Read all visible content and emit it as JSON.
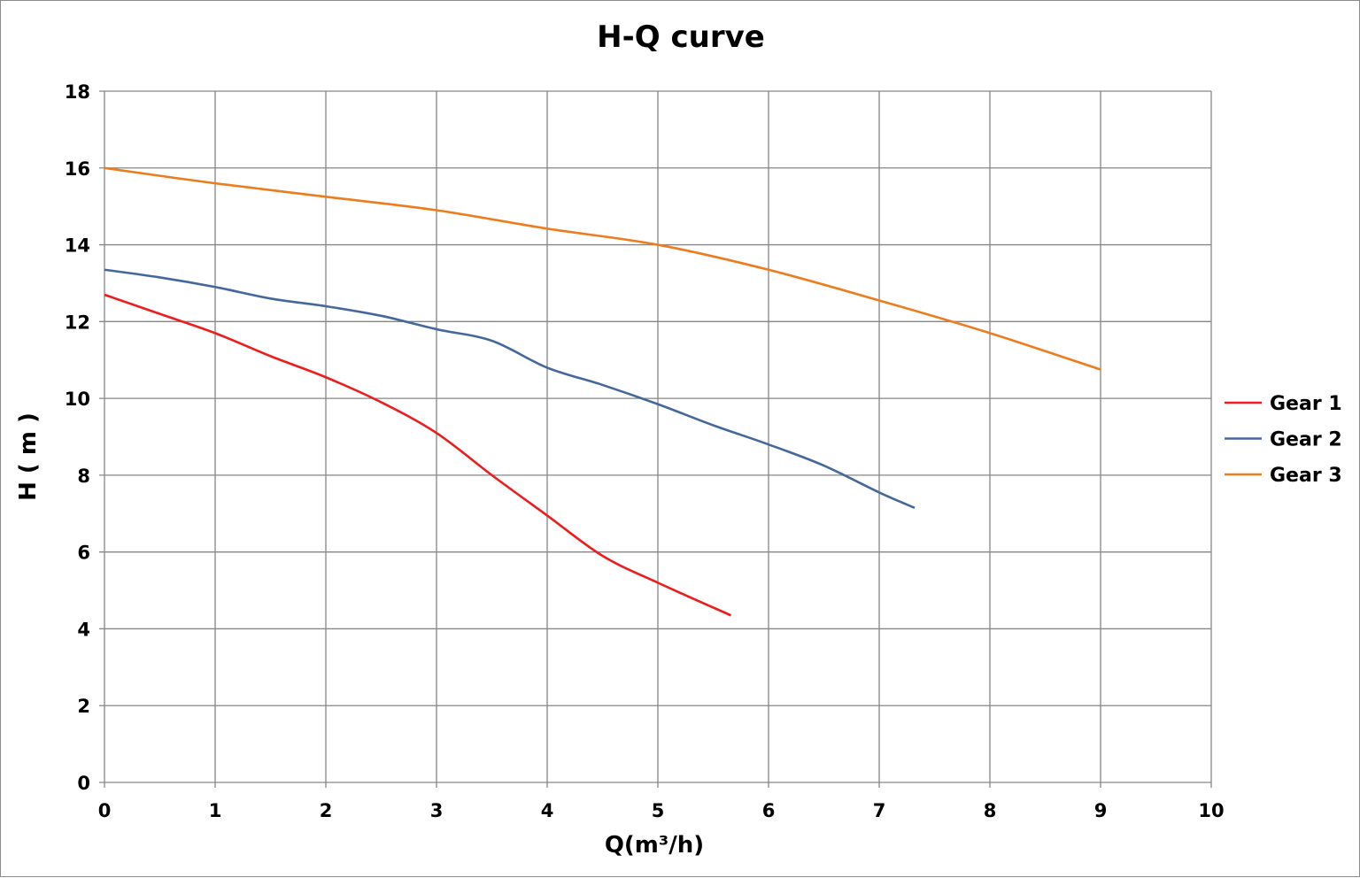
{
  "chart_data": {
    "type": "line",
    "title": "H-Q  curve",
    "xlabel": "Q(m³/h)",
    "ylabel": "H ( m )",
    "xlim": [
      0,
      10
    ],
    "ylim": [
      0,
      18
    ],
    "xticks": [
      "0",
      "1",
      "2",
      "3",
      "4",
      "5",
      "6",
      "7",
      "8",
      "9",
      "10"
    ],
    "yticks": [
      "0",
      "2",
      "4",
      "6",
      "8",
      "10",
      "12",
      "14",
      "16",
      "18"
    ],
    "grid": true,
    "legend_position": "right",
    "series": [
      {
        "name": "Gear 1",
        "color": "#ee1c1c",
        "x": [
          0,
          0.5,
          1,
          1.5,
          2,
          2.5,
          3,
          3.5,
          4,
          4.5,
          5,
          5.66
        ],
        "y": [
          12.7,
          12.2,
          11.7,
          11.1,
          10.55,
          9.9,
          9.1,
          8.0,
          6.95,
          5.9,
          5.2,
          4.35
        ]
      },
      {
        "name": "Gear 2",
        "color": "#44689b",
        "x": [
          0,
          0.5,
          1,
          1.5,
          2,
          2.5,
          3,
          3.5,
          4,
          4.5,
          5,
          5.5,
          6,
          6.5,
          7,
          7.32
        ],
        "y": [
          13.35,
          13.15,
          12.9,
          12.6,
          12.4,
          12.15,
          11.8,
          11.5,
          10.8,
          10.35,
          9.85,
          9.3,
          8.8,
          8.25,
          7.55,
          7.15
        ]
      },
      {
        "name": "Gear 3",
        "color": "#ec7c1c",
        "x": [
          0,
          1,
          2,
          3,
          4,
          5,
          6,
          7,
          8,
          9
        ],
        "y": [
          16.0,
          15.6,
          15.25,
          14.9,
          14.42,
          14.0,
          13.35,
          12.55,
          11.7,
          10.75
        ]
      }
    ]
  }
}
